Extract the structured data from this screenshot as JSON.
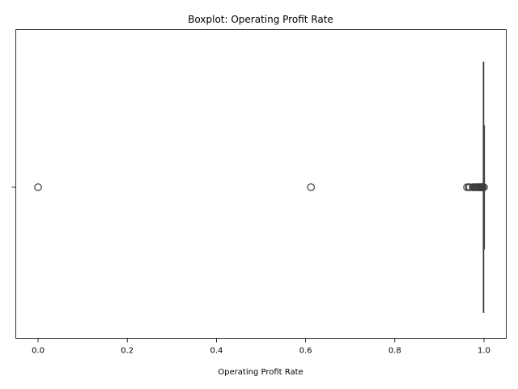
{
  "chart_data": {
    "type": "boxplot",
    "title": "Boxplot:  Operating Profit Rate",
    "xlabel": "Operating Profit Rate",
    "ylabel": "",
    "orientation": "horizontal",
    "xlim": [
      -0.05,
      1.05
    ],
    "xticks": [
      0.0,
      0.2,
      0.4,
      0.6,
      0.8,
      1.0
    ],
    "xtick_labels": [
      "0.0",
      "0.2",
      "0.4",
      "0.6",
      "0.8",
      "1.0"
    ],
    "box": {
      "whisker_low": 0.999,
      "q1": 0.999,
      "median": 0.999,
      "q3": 0.999,
      "whisker_high": 0.999
    },
    "outliers": [
      0.0,
      0.612,
      0.962,
      0.966,
      0.968,
      0.975,
      0.977,
      0.979,
      0.981,
      0.983,
      0.985,
      0.987,
      0.989,
      0.99,
      0.991,
      0.992,
      0.993,
      0.994,
      0.995,
      0.996,
      0.997,
      1.0
    ],
    "grid": false,
    "colors": {
      "line": "#3d3d3d",
      "marker_edge": "#3d3d3d",
      "axis": "#000000"
    }
  }
}
